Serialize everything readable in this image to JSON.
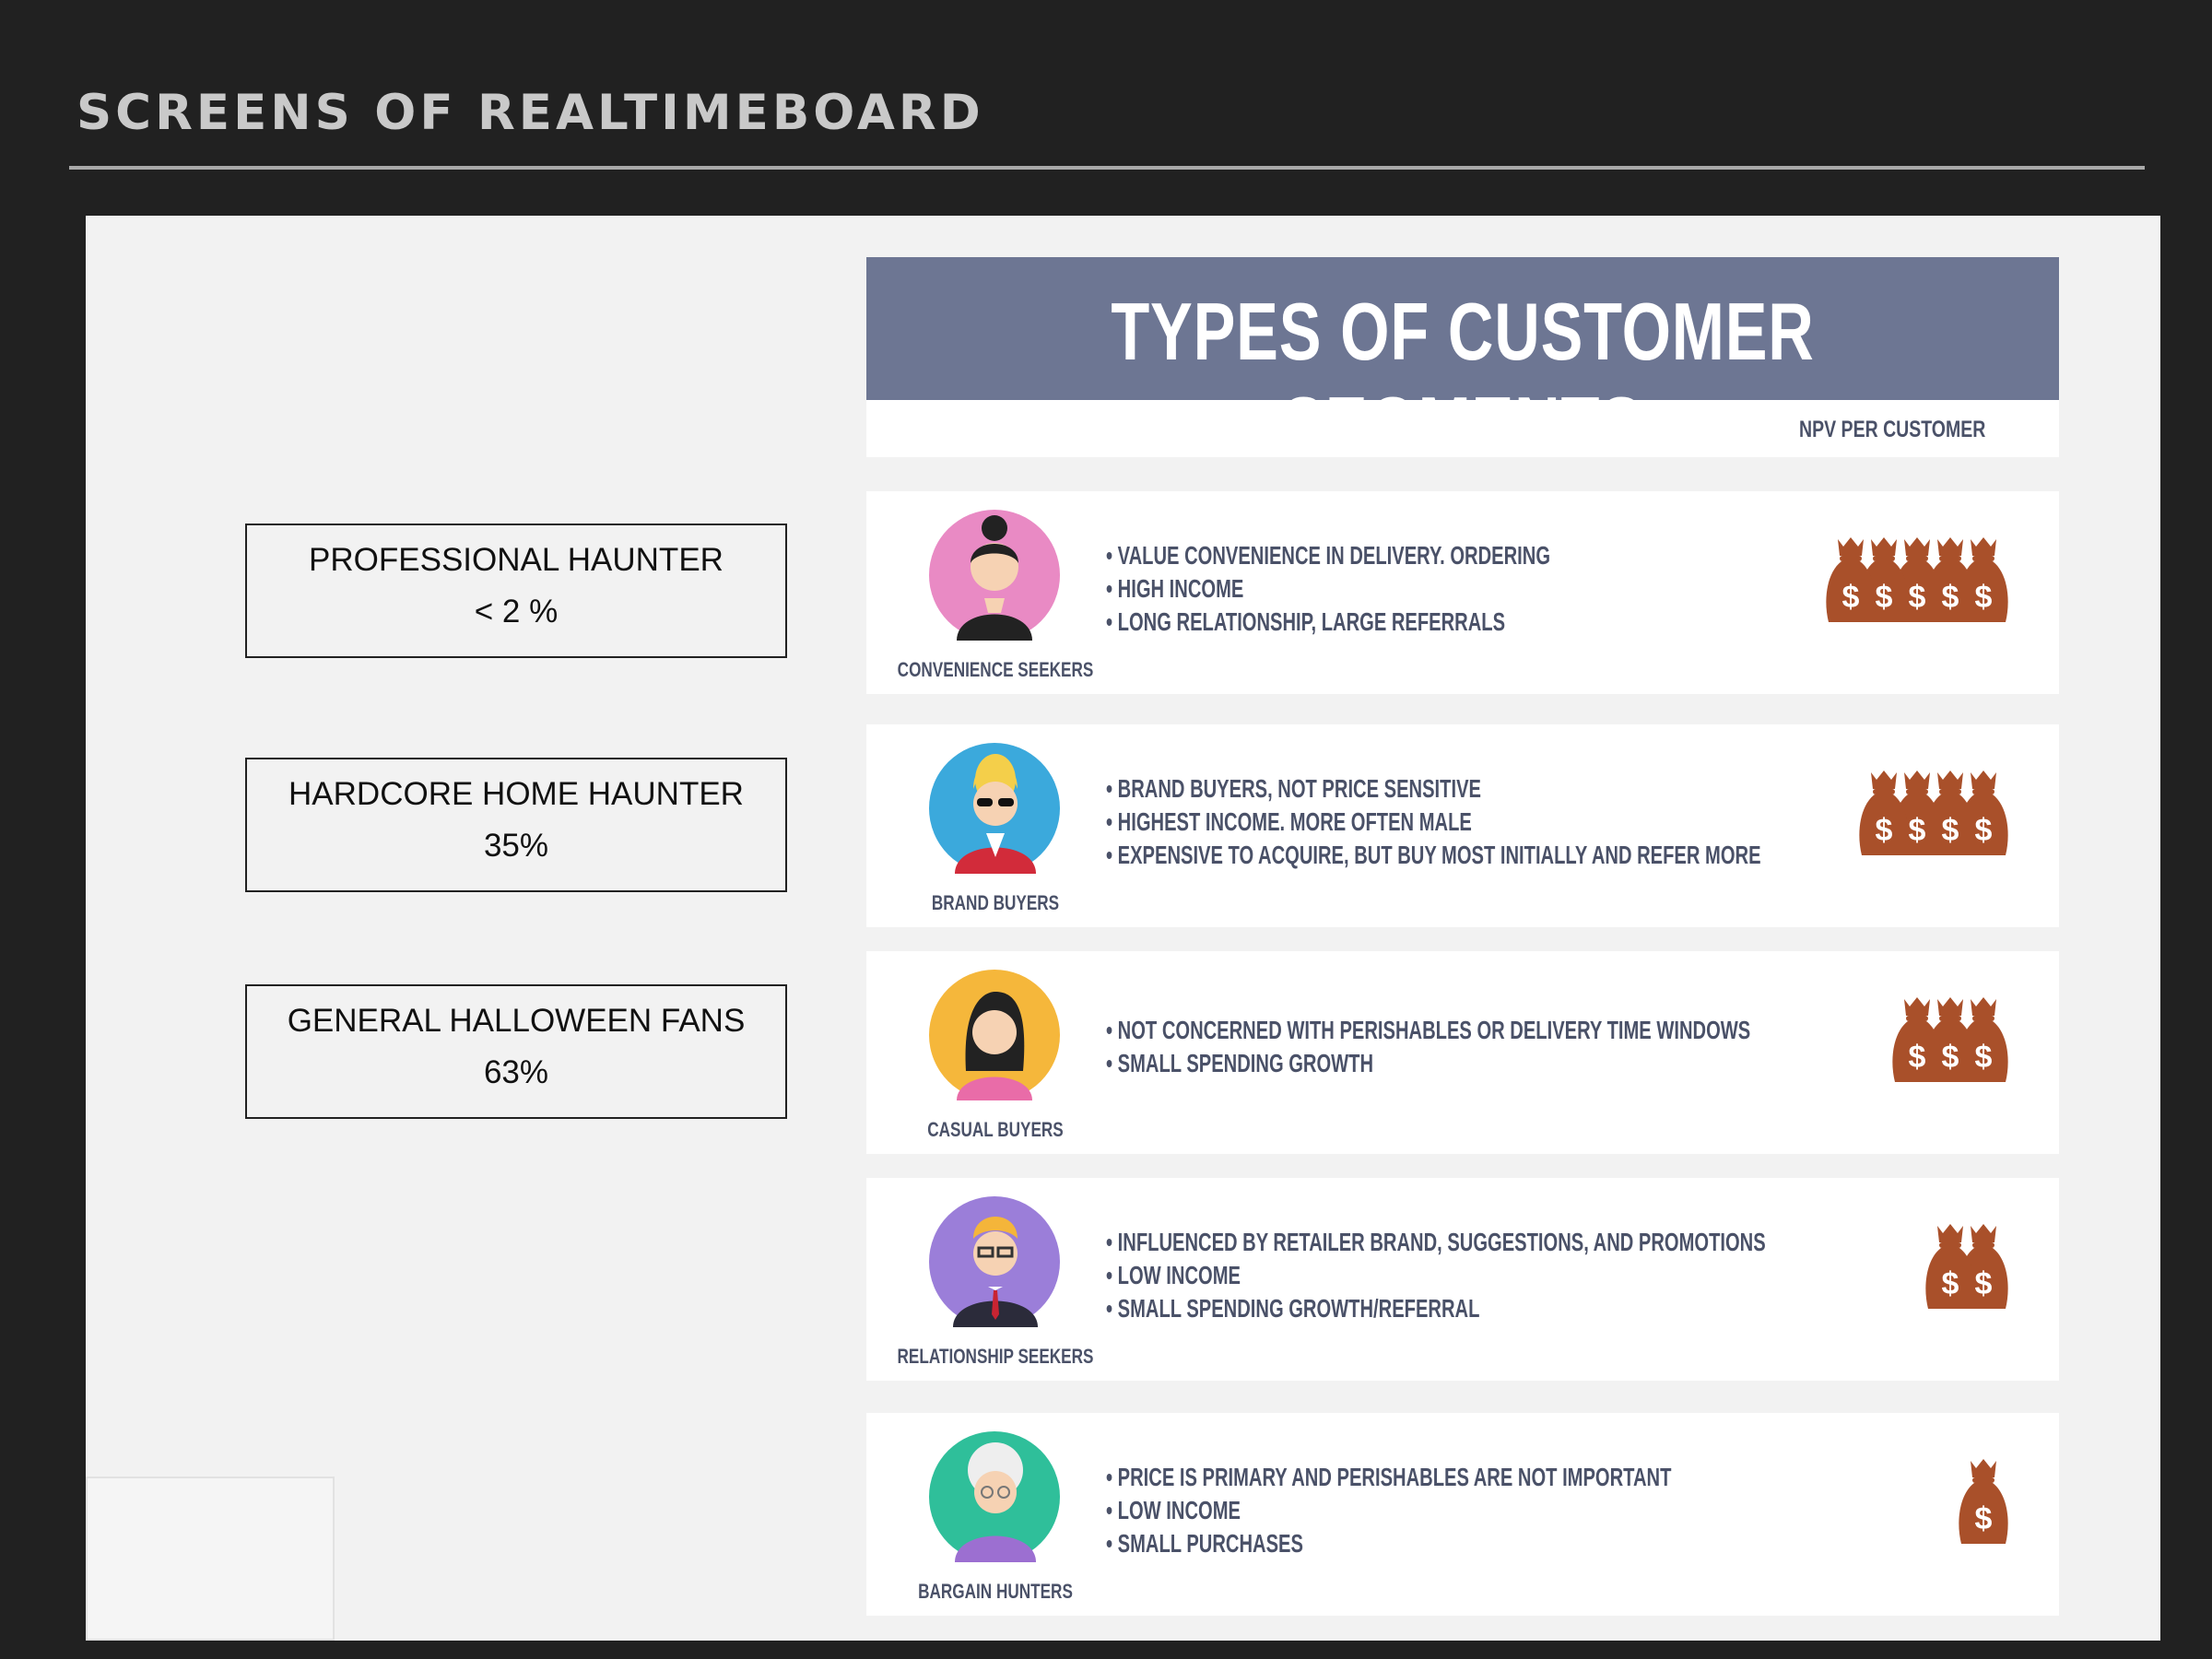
{
  "slide_title": "SCREENS OF REALTIMEBOARD",
  "segments": [
    {
      "name": "PROFESSIONAL HAUNTER",
      "percent": "< 2 %"
    },
    {
      "name": "HARDCORE HOME HAUNTER",
      "percent": "35%"
    },
    {
      "name": "GENERAL HALLOWEEN FANS",
      "percent": "63%"
    }
  ],
  "infographic": {
    "title": "TYPES OF CUSTOMER SEGMENTS",
    "npv_label": "NPV PER CUSTOMER",
    "rows": [
      {
        "caption": "CONVENIENCE SEEKERS",
        "avatar_icon": "woman-bun-avatar-icon",
        "avatar_color": "#e98ac4",
        "bullets": [
          "VALUE CONVENIENCE IN DELIVERY. ORDERING",
          "HIGH INCOME",
          "LONG RELATIONSHIP, LARGE REFERRALS"
        ],
        "npv_bags": 5
      },
      {
        "caption": "BRAND BUYERS",
        "avatar_icon": "man-sunglasses-avatar-icon",
        "avatar_color": "#3ba9dc",
        "bullets": [
          "BRAND BUYERS, NOT PRICE SENSITIVE",
          "HIGHEST INCOME. MORE OFTEN MALE",
          "EXPENSIVE TO ACQUIRE, BUT BUY MOST INITIALLY AND REFER MORE"
        ],
        "npv_bags": 4
      },
      {
        "caption": "CASUAL BUYERS",
        "avatar_icon": "woman-long-hair-avatar-icon",
        "avatar_color": "#f5b73b",
        "bullets": [
          "NOT CONCERNED WITH PERISHABLES OR DELIVERY TIME WINDOWS",
          "SMALL SPENDING GROWTH"
        ],
        "npv_bags": 3
      },
      {
        "caption": "RELATIONSHIP SEEKERS",
        "avatar_icon": "man-glasses-tie-avatar-icon",
        "avatar_color": "#9b7ed9",
        "bullets": [
          "INFLUENCED BY RETAILER BRAND, SUGGESTIONS, AND PROMOTIONS",
          "LOW INCOME",
          "SMALL SPENDING GROWTH/REFERRAL"
        ],
        "npv_bags": 2
      },
      {
        "caption": "BARGAIN HUNTERS",
        "avatar_icon": "elderly-woman-avatar-icon",
        "avatar_color": "#2fbf9a",
        "bullets": [
          "PRICE IS PRIMARY AND PERISHABLES ARE NOT IMPORTANT",
          "LOW INCOME",
          "SMALL PURCHASES"
        ],
        "npv_bags": 1
      }
    ]
  },
  "colors": {
    "background": "#212121",
    "board": "#f2f2f2",
    "header_band": "#6d7693",
    "text_slate": "#4a5168",
    "money_bag": "#a9502a"
  }
}
